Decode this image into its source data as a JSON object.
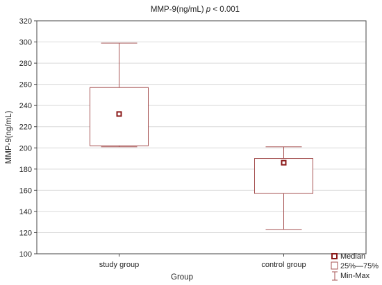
{
  "chart_data": {
    "type": "box",
    "title": "MMP-9(ng/mL)",
    "title_stat": "p",
    "title_stat_value": "< 0.001",
    "xlabel": "Group",
    "ylabel": "MMP-9(ng/mL)",
    "ylim": [
      100,
      320
    ],
    "yticks": [
      100,
      120,
      140,
      160,
      180,
      200,
      220,
      240,
      260,
      280,
      300,
      320
    ],
    "grid": true,
    "categories": [
      "study group",
      "control group"
    ],
    "boxes": [
      {
        "category": "study group",
        "min": 201,
        "q1": 202,
        "median": 232,
        "q3": 257,
        "max": 299
      },
      {
        "category": "control group",
        "min": 123,
        "q1": 157,
        "median": 186,
        "q3": 190,
        "max": 201
      }
    ],
    "legend": {
      "position": "bottom-right",
      "entries": [
        "Median",
        "25%—75%",
        "Min-Max"
      ]
    },
    "colors": {
      "box": "#a55050",
      "median": "#8b1a1a",
      "grid": "#d9d9d9"
    }
  }
}
